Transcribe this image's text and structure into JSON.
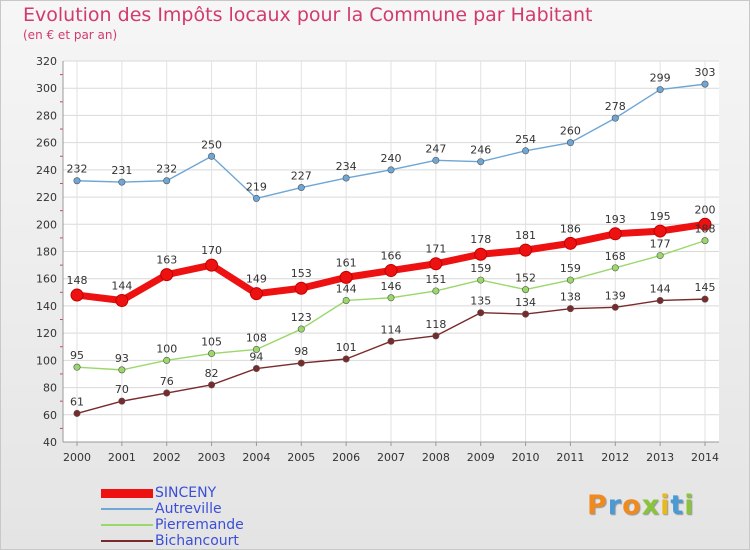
{
  "chart_data": {
    "type": "line",
    "title": "Evolution des Impôts locaux pour la Commune par Habitant",
    "subtitle": "(en € et par an)",
    "x": [
      "2000",
      "2001",
      "2002",
      "2003",
      "2004",
      "2005",
      "2006",
      "2007",
      "2008",
      "2009",
      "2010",
      "2011",
      "2012",
      "2013",
      "2014"
    ],
    "ylim": [
      40,
      320
    ],
    "yticks": [
      40,
      60,
      80,
      100,
      120,
      140,
      160,
      180,
      200,
      220,
      240,
      260,
      280,
      300,
      320
    ],
    "grid": true,
    "legend_position": "bottom-left",
    "series": [
      {
        "name": "SINCENY",
        "color": "#ee1111",
        "values": [
          148,
          144,
          163,
          170,
          149,
          153,
          161,
          166,
          171,
          178,
          181,
          186,
          193,
          195,
          200
        ]
      },
      {
        "name": "Autreville",
        "color": "#6ea6d6",
        "values": [
          232,
          231,
          232,
          250,
          219,
          227,
          234,
          240,
          247,
          246,
          254,
          260,
          278,
          299,
          303
        ]
      },
      {
        "name": "Pierremande",
        "color": "#9ad86a",
        "values": [
          95,
          93,
          100,
          105,
          108,
          123,
          144,
          146,
          151,
          159,
          152,
          159,
          168,
          177,
          188
        ]
      },
      {
        "name": "Bichancourt",
        "color": "#7a2a2a",
        "values": [
          61,
          70,
          76,
          82,
          94,
          98,
          101,
          114,
          118,
          135,
          134,
          138,
          139,
          144,
          145
        ]
      }
    ]
  },
  "brand": {
    "letters": [
      "P",
      "r",
      "o",
      "x",
      "i",
      "t",
      "i"
    ],
    "colors": [
      "#f08a1c",
      "#4a9ad6",
      "#f08a1c",
      "#8ac43c",
      "#e8b81c",
      "#4a9ad6",
      "#8ac43c"
    ]
  }
}
